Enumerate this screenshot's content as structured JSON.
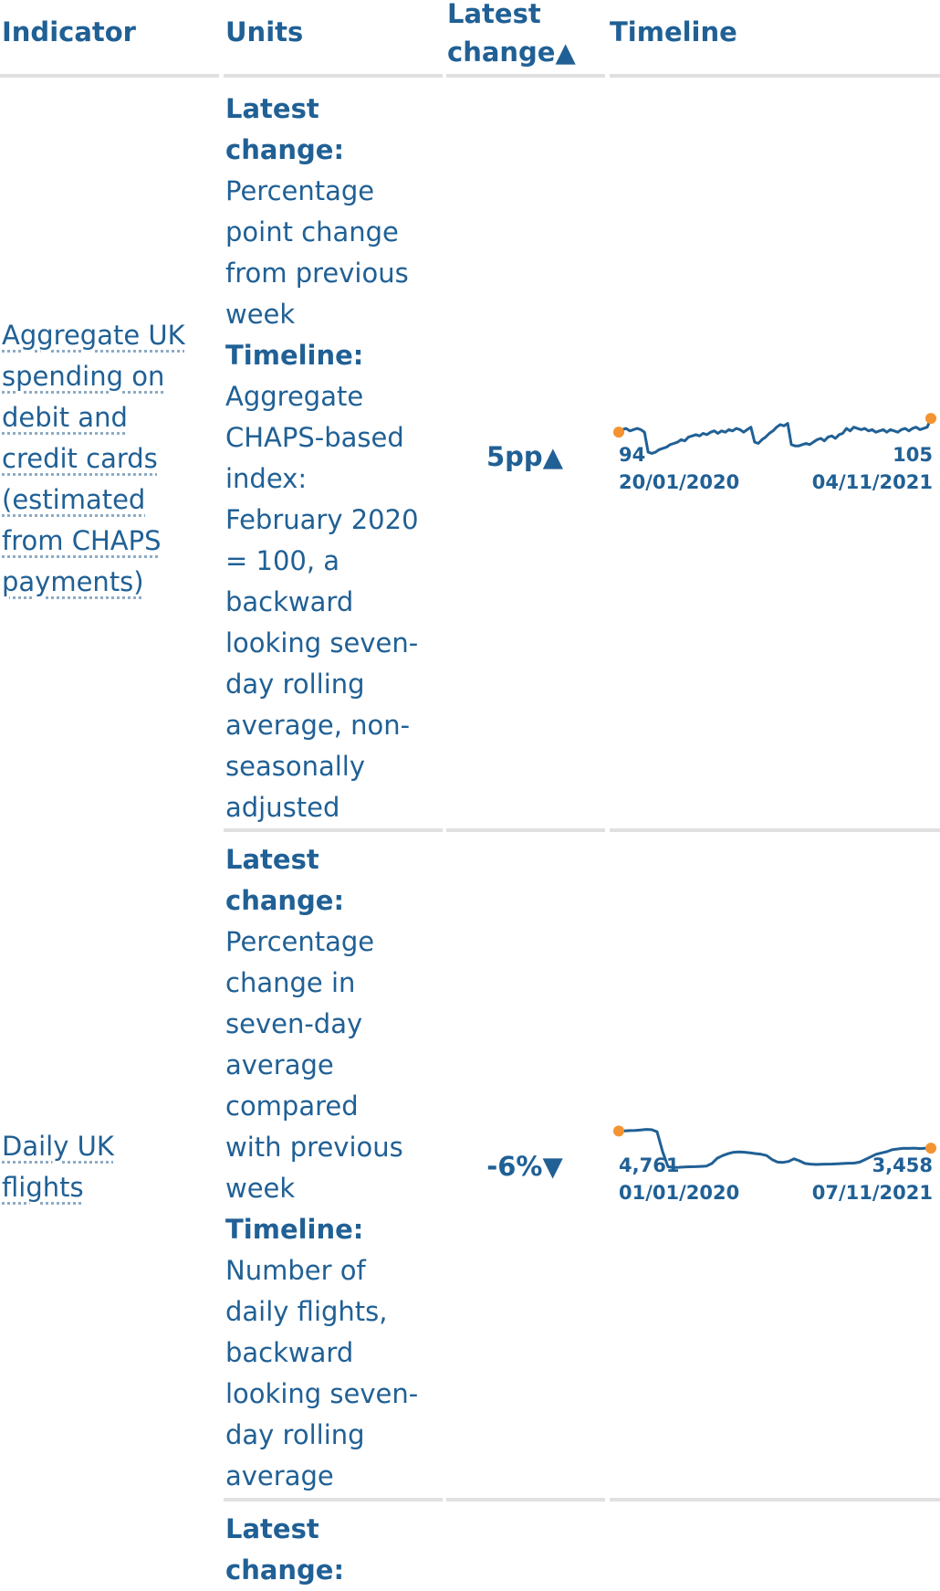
{
  "table": {
    "headers": {
      "indicator": "Indicator",
      "units": "Units",
      "latest_change_line1": "Latest",
      "latest_change_line2": "change",
      "latest_change_sort": "▲",
      "timeline": "Timeline"
    },
    "rows": [
      {
        "indicator": [
          "Aggregate UK",
          "spending on",
          "debit and",
          "credit cards",
          "(estimated",
          "from CHAPS",
          "payments)"
        ],
        "units": {
          "latest_label": [
            "Latest",
            "change:"
          ],
          "latest_text": [
            "Percentage",
            "point change",
            "from previous",
            "week"
          ],
          "timeline_label": "Timeline:",
          "timeline_text": [
            "Aggregate",
            "CHAPS-based",
            "index:",
            "February 2020",
            "= 100, a",
            "backward",
            "looking seven-",
            "day rolling",
            "average, non-",
            "seasonally",
            "adjusted"
          ]
        },
        "latest_change": "5pp",
        "latest_change_icon": "triangle-up-icon",
        "start_value": "94",
        "start_date": "20/01/2020",
        "end_value": "105",
        "end_date": "04/11/2021"
      },
      {
        "indicator": [
          "Daily UK",
          "flights"
        ],
        "units": {
          "latest_label": [
            "Latest",
            "change:"
          ],
          "latest_text": [
            "Percentage",
            "change in",
            "seven-day",
            "average",
            "compared",
            "with previous",
            "week"
          ],
          "timeline_label": "Timeline:",
          "timeline_text": [
            "Number of",
            "daily flights,",
            "backward",
            "looking seven-",
            "day rolling",
            "average"
          ]
        },
        "latest_change": "-6%",
        "latest_change_icon": "triangle-down-icon",
        "start_value": "4,761",
        "start_date": "01/01/2020",
        "end_value": "3,458",
        "end_date": "07/11/2021"
      },
      {
        "units": {
          "latest_label": [
            "Latest",
            "change:"
          ]
        }
      }
    ]
  },
  "colors": {
    "line": "#206095",
    "endpoint": "#f39431",
    "rule": "#e0e0e0"
  },
  "chart_data": [
    {
      "type": "line",
      "series": [
        {
          "values": [
            94,
            96,
            97,
            95,
            96,
            97,
            96,
            94,
            78,
            77,
            78,
            80,
            81,
            82,
            84,
            85,
            86,
            88,
            87,
            90,
            91,
            92,
            91,
            93,
            92,
            94,
            95,
            93,
            95,
            94,
            96,
            95,
            97,
            96,
            94,
            96,
            98,
            86,
            85,
            88,
            90,
            93,
            95,
            98,
            100,
            99,
            101,
            84,
            83,
            83,
            84,
            85,
            84,
            86,
            88,
            89,
            87,
            90,
            91,
            89,
            92,
            93,
            97,
            95,
            98,
            97,
            96,
            97,
            95,
            96,
            94,
            95,
            96,
            94,
            96,
            95,
            94,
            96,
            97,
            95,
            97,
            98,
            96,
            97,
            98,
            105
          ]
        }
      ],
      "x_start": "20/01/2020",
      "x_end": "04/11/2021",
      "y_start": 94,
      "y_end": 105
    },
    {
      "type": "line",
      "series": [
        {
          "values": [
            4761,
            4770,
            4790,
            4800,
            4840,
            4880,
            4860,
            4700,
            3200,
            2050,
            2000,
            2010,
            2030,
            2050,
            2060,
            2080,
            2100,
            2300,
            2700,
            2900,
            3050,
            3150,
            3180,
            3150,
            3100,
            3050,
            3000,
            2900,
            2600,
            2400,
            2380,
            2450,
            2650,
            2500,
            2300,
            2250,
            2220,
            2240,
            2250,
            2260,
            2280,
            2300,
            2320,
            2330,
            2400,
            2600,
            2800,
            3000,
            3100,
            3200,
            3350,
            3400,
            3450,
            3440,
            3460,
            3430,
            3450,
            3458
          ]
        }
      ],
      "x_start": "01/01/2020",
      "x_end": "07/11/2021",
      "y_start": 4761,
      "y_end": 3458
    }
  ]
}
